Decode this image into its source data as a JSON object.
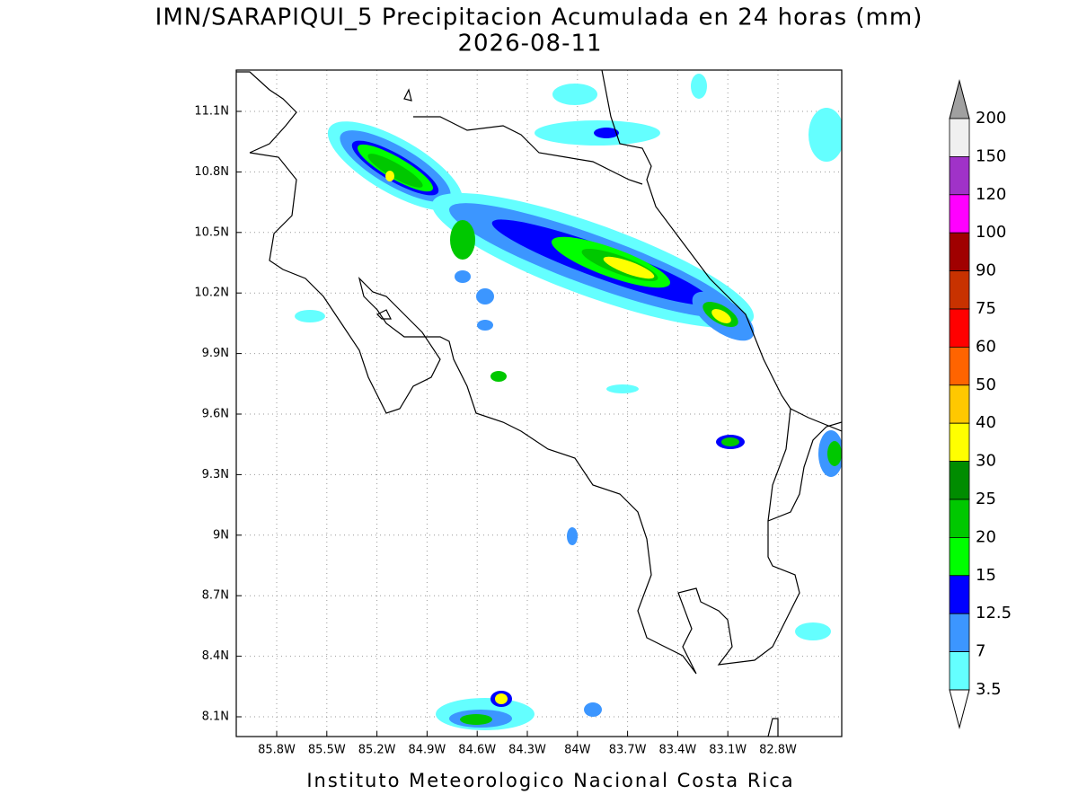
{
  "header": {
    "title": "IMN/SARAPIQUI_5 Precipitacion Acumulada en 24 horas (mm)",
    "date": "2026-08-11"
  },
  "map": {
    "x_ticks": [
      "85.8W",
      "85.5W",
      "85.2W",
      "84.9W",
      "84.6W",
      "84.3W",
      "84W",
      "83.7W",
      "83.4W",
      "83.1W",
      "82.8W"
    ],
    "y_ticks": [
      "11.1N",
      "10.8N",
      "10.5N",
      "10.2N",
      "9.9N",
      "9.6N",
      "9.3N",
      "9N",
      "8.7N",
      "8.4N",
      "8.1N"
    ]
  },
  "legend": {
    "levels": [
      200,
      150,
      120,
      100,
      90,
      75,
      60,
      50,
      40,
      30,
      25,
      20,
      15,
      12.5,
      7,
      3.5
    ],
    "colors": [
      "#f0f0f0",
      "#a032c8",
      "#ff00ff",
      "#a00000",
      "#c83200",
      "#ff0000",
      "#ff6400",
      "#ffc800",
      "#ffff00",
      "#008c00",
      "#00c800",
      "#00ff00",
      "#0000ff",
      "#3c96ff",
      "#64ffff"
    ],
    "top_color": "#a0a0a0"
  },
  "footer": "Instituto Meteorologico Nacional Costa Rica"
}
